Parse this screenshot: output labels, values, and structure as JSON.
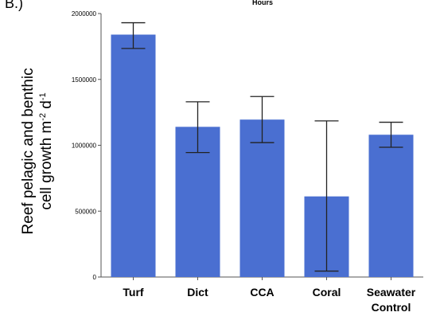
{
  "panel_label": "B.)",
  "top_label": "Hours",
  "chart_data": {
    "type": "bar",
    "categories": [
      [
        "Turf"
      ],
      [
        "Dict"
      ],
      [
        "CCA"
      ],
      [
        "Coral"
      ],
      [
        "Seawater",
        "Control"
      ]
    ],
    "values": [
      1840000,
      1140000,
      1195000,
      612000,
      1080000
    ],
    "error_low": [
      1735000,
      945000,
      1020000,
      45000,
      985000
    ],
    "error_high": [
      1930000,
      1330000,
      1370000,
      1185000,
      1175000
    ],
    "ylabel_line1": "Reef pelagic and benthic",
    "ylabel_line2": "cell growth m",
    "ylabel_sup1": "-2",
    "ylabel_mid": " d",
    "ylabel_sup2": "-1",
    "ylim": [
      0,
      2000000
    ],
    "yticks": [
      0,
      500000,
      1000000,
      1500000,
      2000000
    ],
    "ytick_labels": [
      "0",
      "500000",
      "1000000",
      "1500000",
      "2000000"
    ],
    "grid": false,
    "bar_color": "#4a6fd1"
  }
}
